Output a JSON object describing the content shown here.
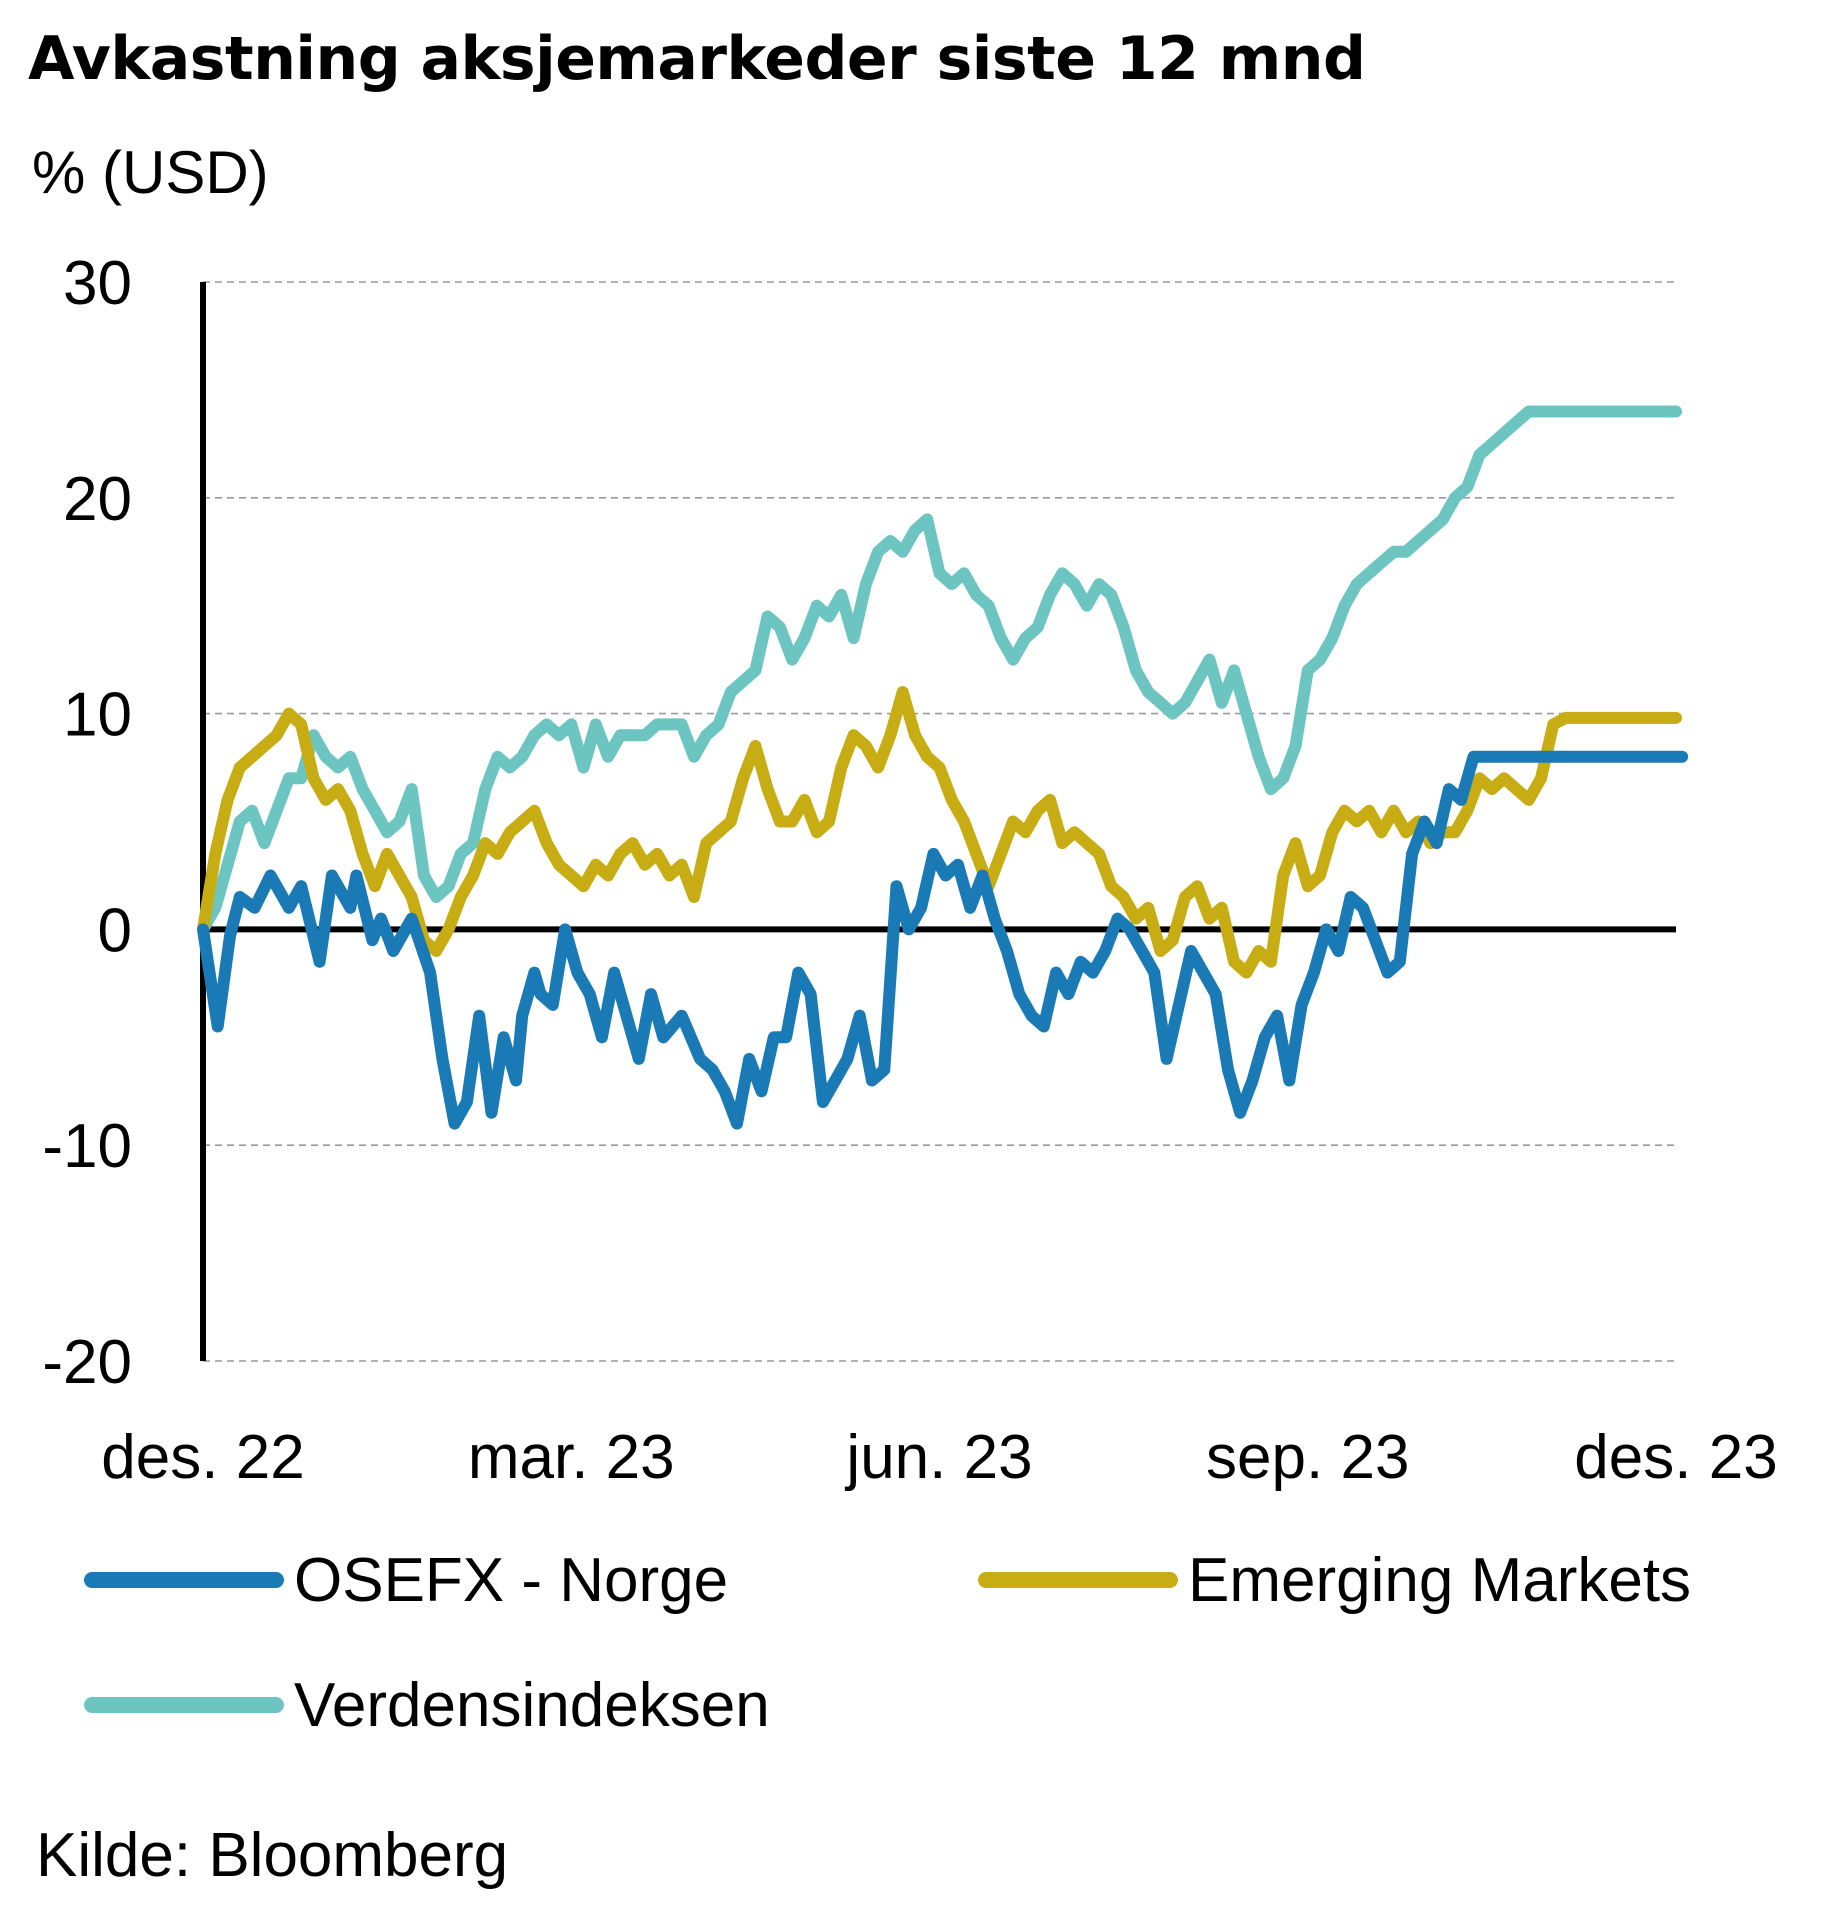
{
  "title": "Avkastning aksjemarkeder siste 12 mnd",
  "unit": "% (USD)",
  "source": "Kilde: Bloomberg",
  "chart_data": {
    "type": "line",
    "ylim": [
      -20,
      30
    ],
    "yticks": [
      30,
      20,
      10,
      0,
      -10,
      -20
    ],
    "ytick_labels": [
      "30",
      "20",
      "10",
      "0",
      "-10",
      "-20"
    ],
    "xlim": [
      0,
      12
    ],
    "xticks": [
      0,
      3,
      6,
      9,
      12
    ],
    "xtick_labels": [
      "des. 22",
      "mar. 23",
      "jun. 23",
      "sep. 23",
      "des. 23"
    ],
    "grid": "horizontal dashed",
    "legend": "bottom",
    "series": [
      {
        "name": "OSEFX - Norge",
        "color": "#1a7ab5",
        "x": [
          0,
          0.12,
          0.22,
          0.3,
          0.42,
          0.55,
          0.7,
          0.8,
          0.95,
          1.05,
          1.2,
          1.25,
          1.38,
          1.45,
          1.55,
          1.7,
          1.85,
          1.95,
          2.05,
          2.15,
          2.25,
          2.35,
          2.45,
          2.55,
          2.6,
          2.7,
          2.75,
          2.85,
          2.95,
          3.05,
          3.15,
          3.25,
          3.35,
          3.45,
          3.55,
          3.65,
          3.75,
          3.9,
          4.05,
          4.15,
          4.25,
          4.35,
          4.45,
          4.55,
          4.65,
          4.75,
          4.85,
          4.95,
          5.05,
          5.15,
          5.25,
          5.35,
          5.45,
          5.55,
          5.65,
          5.75,
          5.85,
          5.95,
          6.05,
          6.15,
          6.25,
          6.35,
          6.45,
          6.55,
          6.65,
          6.75,
          6.85,
          6.95,
          7.05,
          7.15,
          7.25,
          7.35,
          7.45,
          7.55,
          7.65,
          7.75,
          7.85,
          7.95,
          8.05,
          8.15,
          8.25,
          8.35,
          8.45,
          8.55,
          8.65,
          8.75,
          8.85,
          8.95,
          9.05,
          9.15,
          9.25,
          9.35,
          9.45,
          9.55,
          9.65,
          9.75,
          9.85,
          9.95,
          10.05,
          10.15,
          10.25,
          10.35,
          10.45,
          10.55,
          10.65,
          10.75,
          10.85,
          10.95,
          11.05,
          11.15,
          11.25,
          11.35,
          11.45,
          11.55,
          11.65,
          11.75,
          11.85,
          11.95,
          12.05
        ],
        "values": [
          0.0,
          -4.5,
          -0.3,
          1.5,
          1.0,
          2.5,
          1.0,
          2.0,
          -1.5,
          2.5,
          1.0,
          2.5,
          -0.5,
          0.5,
          -1.0,
          0.5,
          -2.0,
          -6.0,
          -9.0,
          -8.0,
          -4.0,
          -8.5,
          -5.0,
          -7.0,
          -4.0,
          -2.0,
          -3.0,
          -3.5,
          0.0,
          -2.0,
          -3.0,
          -5.0,
          -2.0,
          -4.0,
          -6.0,
          -3.0,
          -5.0,
          -4.0,
          -6.0,
          -6.5,
          -7.5,
          -9.0,
          -6.0,
          -7.5,
          -5.0,
          -5.0,
          -2.0,
          -3.0,
          -8.0,
          -7.0,
          -6.0,
          -4.0,
          -7.0,
          -6.5,
          2.0,
          0.0,
          1.0,
          3.5,
          2.5,
          3.0,
          1.0,
          2.5,
          0.5,
          -1.0,
          -3.0,
          -4.0,
          -4.5,
          -2.0,
          -3.0,
          -1.5,
          -2.0,
          -1.0,
          0.5,
          0.0,
          -1.0,
          -2.0,
          -6.0,
          -3.5,
          -1.0,
          -2.0,
          -3.0,
          -6.5,
          -8.5,
          -7.0,
          -5.0,
          -4.0,
          -7.0,
          -3.5,
          -2.0,
          0.0,
          -1.0,
          1.5,
          1.0,
          -0.5,
          -2.0,
          -1.5,
          3.5,
          5.0,
          4.0,
          6.5,
          6.0,
          8.0,
          8.0,
          8.0,
          8.0,
          8.0,
          8.0,
          8.0,
          8.0,
          8.0,
          8.0,
          8.0,
          8.0,
          8.0,
          8.0,
          8.0,
          8.0,
          8.0,
          8.0
        ]
      },
      {
        "name": "Emerging Markets",
        "color": "#c7ad13",
        "x": [
          0,
          0.1,
          0.2,
          0.3,
          0.4,
          0.5,
          0.6,
          0.7,
          0.8,
          0.9,
          1.0,
          1.1,
          1.2,
          1.3,
          1.4,
          1.5,
          1.6,
          1.7,
          1.8,
          1.9,
          2.0,
          2.1,
          2.2,
          2.3,
          2.4,
          2.5,
          2.6,
          2.7,
          2.8,
          2.9,
          3.0,
          3.1,
          3.2,
          3.3,
          3.4,
          3.5,
          3.6,
          3.7,
          3.8,
          3.9,
          4.0,
          4.1,
          4.2,
          4.3,
          4.4,
          4.5,
          4.6,
          4.7,
          4.8,
          4.9,
          5.0,
          5.1,
          5.2,
          5.3,
          5.4,
          5.5,
          5.6,
          5.7,
          5.8,
          5.9,
          6.0,
          6.1,
          6.2,
          6.3,
          6.4,
          6.5,
          6.6,
          6.7,
          6.8,
          6.9,
          7.0,
          7.1,
          7.2,
          7.3,
          7.4,
          7.5,
          7.6,
          7.7,
          7.8,
          7.9,
          8.0,
          8.1,
          8.2,
          8.3,
          8.4,
          8.5,
          8.6,
          8.7,
          8.8,
          8.9,
          9.0,
          9.1,
          9.2,
          9.3,
          9.4,
          9.5,
          9.6,
          9.7,
          9.8,
          9.9,
          10.0,
          10.1,
          10.2,
          10.3,
          10.4,
          10.5,
          10.6,
          10.7,
          10.8,
          10.9,
          11.0,
          11.1,
          11.2,
          11.3,
          11.4,
          11.5,
          11.6,
          11.7,
          11.8,
          11.9,
          12.0
        ],
        "values": [
          0.0,
          3.5,
          6.0,
          7.5,
          8.0,
          8.5,
          9.0,
          10.0,
          9.5,
          7.0,
          6.0,
          6.5,
          5.5,
          3.5,
          2.0,
          3.5,
          2.5,
          1.5,
          -0.5,
          -1.0,
          0.0,
          1.5,
          2.5,
          4.0,
          3.5,
          4.5,
          5.0,
          5.5,
          4.0,
          3.0,
          2.5,
          2.0,
          3.0,
          2.5,
          3.5,
          4.0,
          3.0,
          3.5,
          2.5,
          3.0,
          1.5,
          4.0,
          4.5,
          5.0,
          7.0,
          8.5,
          6.5,
          5.0,
          5.0,
          6.0,
          4.5,
          5.0,
          7.5,
          9.0,
          8.5,
          7.5,
          9.0,
          11.0,
          9.0,
          8.0,
          7.5,
          6.0,
          5.0,
          3.5,
          2.0,
          3.5,
          5.0,
          4.5,
          5.5,
          6.0,
          4.0,
          4.5,
          4.0,
          3.5,
          2.0,
          1.5,
          0.5,
          1.0,
          -1.0,
          -0.5,
          1.5,
          2.0,
          0.5,
          1.0,
          -1.5,
          -2.0,
          -1.0,
          -1.5,
          2.5,
          4.0,
          2.0,
          2.5,
          4.5,
          5.5,
          5.0,
          5.5,
          4.5,
          5.5,
          4.5,
          5.0,
          4.0,
          4.5,
          4.5,
          5.5,
          7.0,
          6.5,
          7.0,
          6.5,
          6.0,
          7.0,
          9.5,
          9.8,
          9.8,
          9.8,
          9.8,
          9.8,
          9.8,
          9.8,
          9.8,
          9.8,
          9.8
        ]
      },
      {
        "name": "Verdensindeksen",
        "color": "#6dc5c2",
        "x": [
          0,
          0.1,
          0.2,
          0.3,
          0.4,
          0.5,
          0.6,
          0.7,
          0.8,
          0.9,
          1.0,
          1.1,
          1.2,
          1.3,
          1.4,
          1.5,
          1.6,
          1.7,
          1.8,
          1.9,
          2.0,
          2.1,
          2.2,
          2.3,
          2.4,
          2.5,
          2.6,
          2.7,
          2.8,
          2.9,
          3.0,
          3.1,
          3.2,
          3.3,
          3.4,
          3.5,
          3.6,
          3.7,
          3.8,
          3.9,
          4.0,
          4.1,
          4.2,
          4.3,
          4.4,
          4.5,
          4.6,
          4.7,
          4.8,
          4.9,
          5.0,
          5.1,
          5.2,
          5.3,
          5.4,
          5.5,
          5.6,
          5.7,
          5.8,
          5.9,
          6.0,
          6.1,
          6.2,
          6.3,
          6.4,
          6.5,
          6.6,
          6.7,
          6.8,
          6.9,
          7.0,
          7.1,
          7.2,
          7.3,
          7.4,
          7.5,
          7.6,
          7.7,
          7.8,
          7.9,
          8.0,
          8.1,
          8.2,
          8.3,
          8.4,
          8.5,
          8.6,
          8.7,
          8.8,
          8.9,
          9.0,
          9.1,
          9.2,
          9.3,
          9.4,
          9.5,
          9.6,
          9.7,
          9.8,
          9.9,
          10.0,
          10.1,
          10.2,
          10.3,
          10.4,
          10.5,
          10.6,
          10.7,
          10.8,
          10.9,
          11.0,
          11.1,
          11.2,
          11.3,
          11.4,
          11.5,
          11.6,
          11.7,
          11.8,
          11.9,
          12.0
        ],
        "values": [
          0.0,
          1.0,
          3.0,
          5.0,
          5.5,
          4.0,
          5.5,
          7.0,
          7.0,
          9.0,
          8.0,
          7.5,
          8.0,
          6.5,
          5.5,
          4.5,
          5.0,
          6.5,
          2.5,
          1.5,
          2.0,
          3.5,
          4.0,
          6.5,
          8.0,
          7.5,
          8.0,
          9.0,
          9.5,
          9.0,
          9.5,
          7.5,
          9.5,
          8.0,
          9.0,
          9.0,
          9.0,
          9.5,
          9.5,
          9.5,
          8.0,
          9.0,
          9.5,
          11.0,
          11.5,
          12.0,
          14.5,
          14.0,
          12.5,
          13.5,
          15.0,
          14.5,
          15.5,
          13.5,
          16.0,
          17.5,
          18.0,
          17.5,
          18.5,
          19.0,
          16.5,
          16.0,
          16.5,
          15.5,
          15.0,
          13.5,
          12.5,
          13.5,
          14.0,
          15.5,
          16.5,
          16.0,
          15.0,
          16.0,
          15.5,
          14.0,
          12.0,
          11.0,
          10.5,
          10.0,
          10.5,
          11.5,
          12.5,
          10.5,
          12.0,
          10.0,
          8.0,
          6.5,
          7.0,
          8.5,
          12.0,
          12.5,
          13.5,
          15.0,
          16.0,
          16.5,
          17.0,
          17.5,
          17.5,
          18.0,
          18.5,
          19.0,
          20.0,
          20.5,
          22.0,
          22.5,
          23.0,
          23.5,
          24.0,
          24.0,
          24.0,
          24.0,
          24.0,
          24.0,
          24.0,
          24.0,
          24.0,
          24.0,
          24.0,
          24.0,
          24.0
        ]
      }
    ]
  }
}
